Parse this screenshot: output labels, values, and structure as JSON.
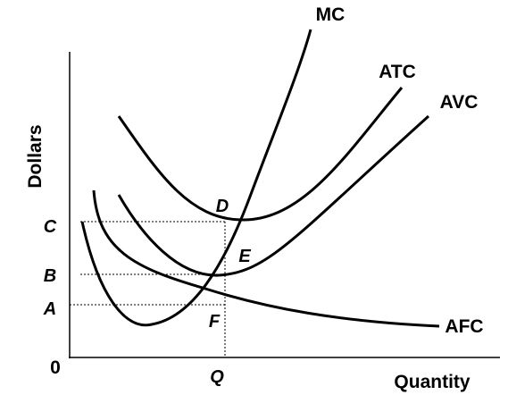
{
  "axes": {
    "y_label": "Dollars",
    "x_label": "Quantity",
    "origin": "0"
  },
  "y_ticks": [
    "C",
    "B",
    "A"
  ],
  "x_ticks": [
    "Q"
  ],
  "curves": [
    "MC",
    "ATC",
    "AVC",
    "AFC"
  ],
  "points": [
    "D",
    "E",
    "F"
  ]
}
